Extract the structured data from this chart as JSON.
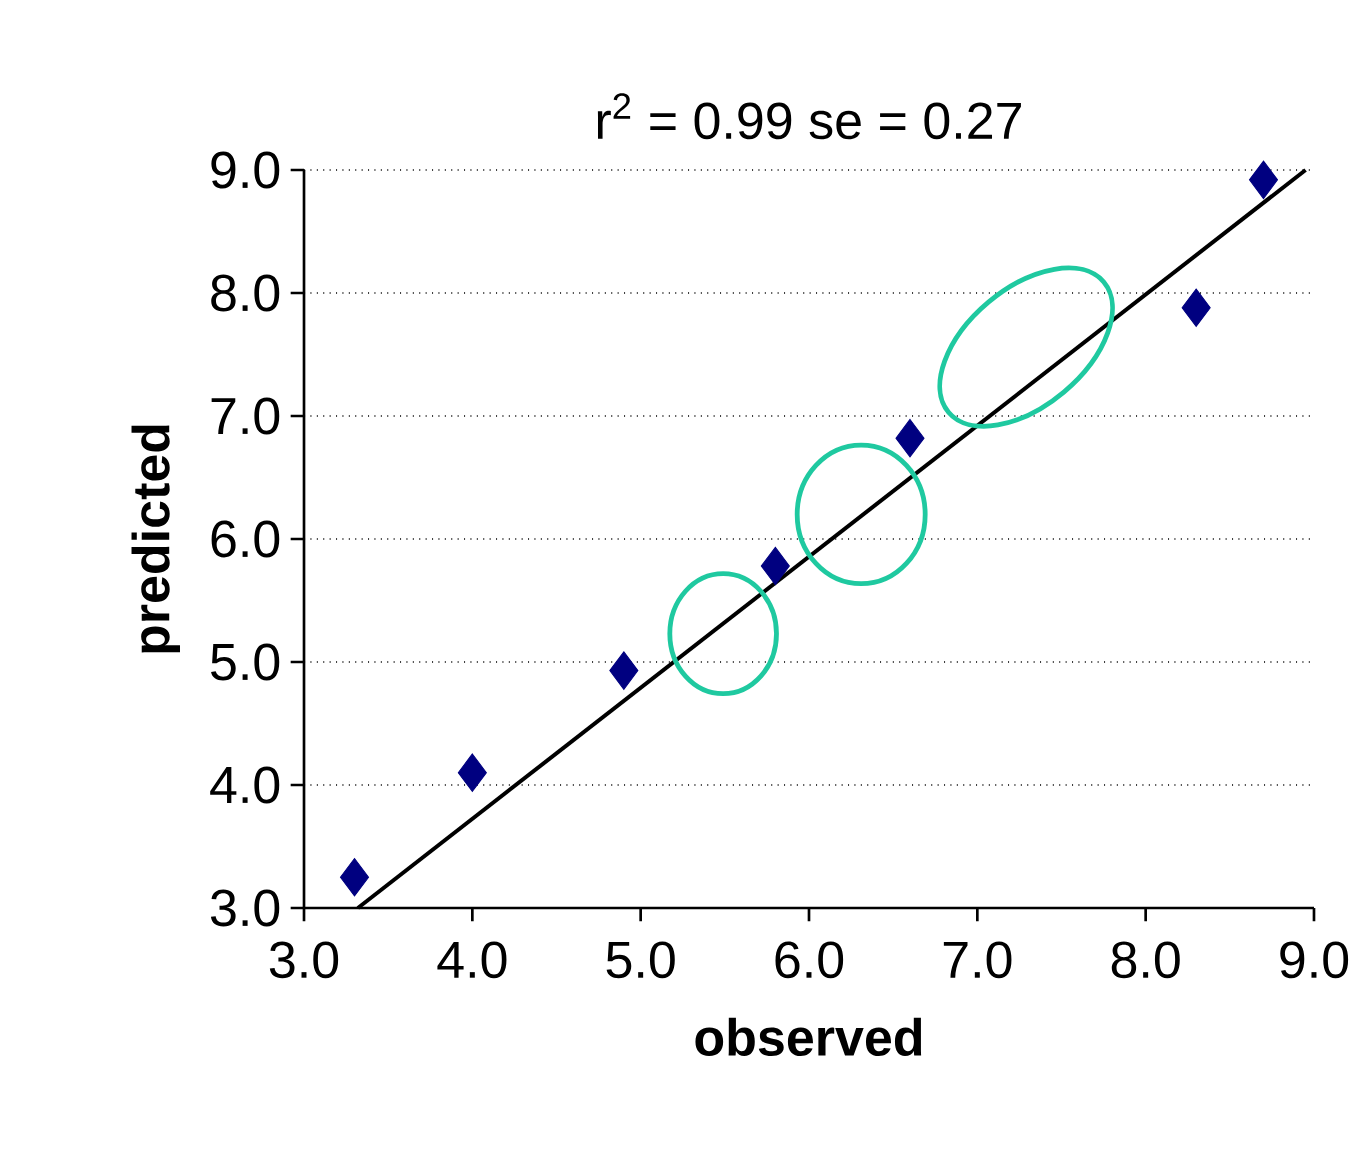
{
  "chart_data": {
    "type": "scatter",
    "title": "r$^{2}$ = 0.99  se = 0.27",
    "xlabel": "observed",
    "ylabel": "predicted",
    "xlim": [
      3.0,
      9.0
    ],
    "ylim": [
      3.0,
      9.0
    ],
    "xticks": [
      {
        "value": 3,
        "label": "3.0"
      },
      {
        "value": 4,
        "label": "4.0"
      },
      {
        "value": 5,
        "label": "5.0"
      },
      {
        "value": 6,
        "label": "6.0"
      },
      {
        "value": 7,
        "label": "7.0"
      },
      {
        "value": 8,
        "label": "8.0"
      },
      {
        "value": 9,
        "label": "9.0"
      }
    ],
    "yticks": [
      {
        "value": 3,
        "label": "3.0"
      },
      {
        "value": 4,
        "label": "4.0"
      },
      {
        "value": 5,
        "label": "5.0"
      },
      {
        "value": 6,
        "label": "6.0"
      },
      {
        "value": 7,
        "label": "7.0"
      },
      {
        "value": 8,
        "label": "8.0"
      },
      {
        "value": 9,
        "label": "9.0"
      }
    ],
    "grid": "y",
    "series": [
      {
        "marker": "diamond",
        "color": "#000080",
        "x": [
          3.3,
          4.0,
          4.9,
          5.8,
          6.6,
          8.3,
          8.7
        ],
        "values": [
          3.25,
          4.1,
          4.93,
          5.78,
          6.82,
          7.88,
          8.92
        ]
      },
      {
        "type": "line",
        "marker": "none",
        "color": "#000000",
        "x": [
          3.32,
          8.95
        ],
        "values": [
          3.0,
          9.0
        ]
      }
    ]
  }
}
